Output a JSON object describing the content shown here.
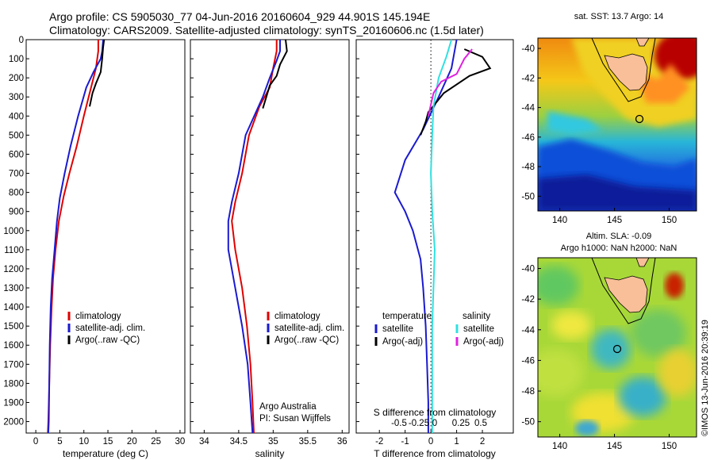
{
  "header": {
    "line1": "Argo profile: CS 5905030_77 04-Jun-2016 20160604_929 44.901S 145.194E",
    "line2": "Climatology: CARS2009. Satellite-adjusted climatology: synTS_20160606.nc (1.5d later)"
  },
  "footer": {
    "stamp": "©IMOS 13-Jun-2016 20:39:19"
  },
  "chart_data": [
    {
      "type": "line",
      "id": "temperature",
      "xlabel": "temperature (deg C)",
      "xlim": [
        -2,
        31
      ],
      "xticks": [
        "0",
        "5",
        "10",
        "15",
        "20",
        "25",
        "30"
      ],
      "ylim": [
        0,
        2060
      ],
      "yticks": [
        "0",
        "100",
        "200",
        "300",
        "400",
        "500",
        "600",
        "700",
        "800",
        "900",
        "1000",
        "1100",
        "1200",
        "1300",
        "1400",
        "1500",
        "1600",
        "1700",
        "1800",
        "1900",
        "2000"
      ],
      "legend": [
        "climatology",
        "satellite-adj. clim.",
        "Argo(..raw -QC)"
      ],
      "series": [
        {
          "name": "climatology",
          "color": "#e00000",
          "points": [
            [
              13.0,
              0
            ],
            [
              13.0,
              60
            ],
            [
              12.5,
              150
            ],
            [
              11.5,
              250
            ],
            [
              10.0,
              400
            ],
            [
              8.5,
              560
            ],
            [
              7.0,
              700
            ],
            [
              5.8,
              820
            ],
            [
              4.8,
              950
            ],
            [
              4.1,
              1100
            ],
            [
              3.6,
              1250
            ],
            [
              3.3,
              1400
            ],
            [
              3.0,
              1600
            ],
            [
              2.8,
              1800
            ],
            [
              2.6,
              2000
            ],
            [
              2.5,
              2060
            ]
          ]
        },
        {
          "name": "satellite-adj. clim.",
          "color": "#1a1ad0",
          "points": [
            [
              14.0,
              0
            ],
            [
              13.8,
              60
            ],
            [
              13.5,
              100
            ],
            [
              12.0,
              170
            ],
            [
              10.5,
              250
            ],
            [
              8.8,
              400
            ],
            [
              7.2,
              560
            ],
            [
              6.0,
              700
            ],
            [
              5.0,
              830
            ],
            [
              4.4,
              950
            ],
            [
              3.9,
              1100
            ],
            [
              3.4,
              1250
            ],
            [
              3.1,
              1400
            ],
            [
              2.9,
              1600
            ],
            [
              2.8,
              1800
            ],
            [
              2.7,
              2000
            ],
            [
              2.6,
              2060
            ]
          ]
        },
        {
          "name": "Argo(..raw -QC)",
          "color": "#000000",
          "points": [
            [
              14.2,
              0
            ],
            [
              14.0,
              40
            ],
            [
              13.8,
              100
            ],
            [
              13.5,
              170
            ],
            [
              12.5,
              230
            ],
            [
              11.8,
              280
            ],
            [
              11.2,
              350
            ]
          ]
        }
      ]
    },
    {
      "type": "line",
      "id": "salinity",
      "xlabel": "salinity",
      "xlim": [
        33.8,
        36.1
      ],
      "xticks": [
        "34",
        "34.5",
        "35",
        "35.5",
        "36"
      ],
      "ylim": [
        0,
        2060
      ],
      "legend": [
        "climatology",
        "satellite-adj. clim.",
        "Argo(..raw -QC)"
      ],
      "annotation": [
        "Argo Australia",
        "PI: Susan Wijffels"
      ],
      "series": [
        {
          "name": "climatology",
          "color": "#e00000",
          "points": [
            [
              35.05,
              0
            ],
            [
              35.05,
              60
            ],
            [
              35.0,
              150
            ],
            [
              34.95,
              250
            ],
            [
              34.8,
              350
            ],
            [
              34.65,
              500
            ],
            [
              34.55,
              700
            ],
            [
              34.45,
              850
            ],
            [
              34.4,
              950
            ],
            [
              34.45,
              1100
            ],
            [
              34.55,
              1300
            ],
            [
              34.62,
              1500
            ],
            [
              34.67,
              1700
            ],
            [
              34.7,
              1900
            ],
            [
              34.72,
              2060
            ]
          ]
        },
        {
          "name": "satellite-adj. clim.",
          "color": "#1a1ad0",
          "points": [
            [
              35.1,
              0
            ],
            [
              35.1,
              60
            ],
            [
              35.05,
              110
            ],
            [
              34.95,
              200
            ],
            [
              34.85,
              300
            ],
            [
              34.75,
              380
            ],
            [
              34.6,
              500
            ],
            [
              34.5,
              700
            ],
            [
              34.4,
              850
            ],
            [
              34.35,
              950
            ],
            [
              34.35,
              1100
            ],
            [
              34.45,
              1300
            ],
            [
              34.55,
              1500
            ],
            [
              34.63,
              1700
            ],
            [
              34.67,
              1900
            ],
            [
              34.7,
              2060
            ]
          ]
        },
        {
          "name": "Argo(..raw -QC)",
          "color": "#000000",
          "points": [
            [
              35.18,
              0
            ],
            [
              35.2,
              60
            ],
            [
              35.1,
              130
            ],
            [
              35.05,
              190
            ],
            [
              34.95,
              240
            ],
            [
              34.9,
              300
            ],
            [
              34.85,
              360
            ]
          ]
        }
      ]
    },
    {
      "type": "line",
      "id": "differences",
      "xlabel": "T difference from climatology",
      "xlabel_top": "S difference from climatology",
      "xlim": [
        -2.9,
        3.2
      ],
      "xticks": [
        "-2",
        "-1",
        "0",
        "1",
        "2"
      ],
      "sticks": [
        "-0.5",
        "-0.25",
        "0",
        "0.25",
        "0.5"
      ],
      "ylim": [
        0,
        2060
      ],
      "legend_titles": [
        "temperature",
        "salinity"
      ],
      "legend": [
        "satellite",
        "Argo(-adj)",
        "satellite",
        "Argo(-adj)"
      ],
      "series": [
        {
          "name": "satellite",
          "group": "temperature",
          "color": "#1a1ad0",
          "points": [
            [
              1.0,
              0
            ],
            [
              0.8,
              150
            ],
            [
              0.3,
              300
            ],
            [
              -0.3,
              470
            ],
            [
              -1.0,
              630
            ],
            [
              -1.4,
              800
            ],
            [
              -1.0,
              900
            ],
            [
              -0.7,
              1000
            ],
            [
              -0.4,
              1150
            ],
            [
              -0.3,
              1300
            ],
            [
              -0.2,
              1500
            ],
            [
              -0.15,
              1700
            ],
            [
              -0.1,
              1900
            ],
            [
              -0.1,
              2060
            ]
          ]
        },
        {
          "name": "Argo(-adj)",
          "group": "temperature",
          "color": "#000000",
          "points": [
            [
              1.3,
              50
            ],
            [
              2.0,
              90
            ],
            [
              2.3,
              150
            ],
            [
              1.5,
              190
            ],
            [
              0.5,
              280
            ],
            [
              -0.1,
              380
            ],
            [
              -0.2,
              430
            ],
            [
              -0.4,
              500
            ]
          ]
        },
        {
          "name": "satellite",
          "group": "salinity",
          "color": "#30e0e0",
          "points": [
            [
              0.8,
              0
            ],
            [
              0.6,
              90
            ],
            [
              0.3,
              200
            ],
            [
              0.1,
              350
            ],
            [
              0.05,
              500
            ],
            [
              0.0,
              700
            ],
            [
              0.05,
              900
            ],
            [
              0.15,
              1100
            ],
            [
              0.1,
              1300
            ],
            [
              0.05,
              1500
            ],
            [
              0.05,
              1800
            ],
            [
              0.05,
              2060
            ]
          ]
        },
        {
          "name": "Argo(-adj)",
          "group": "salinity",
          "color": "#e020e0",
          "points": [
            [
              1.6,
              50
            ],
            [
              1.3,
              100
            ],
            [
              1.0,
              180
            ],
            [
              0.4,
              220
            ],
            [
              0.1,
              280
            ],
            [
              -0.1,
              400
            ]
          ]
        }
      ]
    },
    {
      "type": "heatmap",
      "id": "sst-map",
      "title": "sat. SST: 13.7 Argo: 14",
      "xticks": [
        "140",
        "145",
        "150"
      ],
      "yticks": [
        "-40",
        "-42",
        "-44",
        "-46",
        "-48",
        "-50"
      ],
      "xlim": [
        138,
        152.5
      ],
      "ylim": [
        -51,
        -39.3
      ],
      "float_position": [
        145.194,
        -44.901
      ]
    },
    {
      "type": "heatmap",
      "id": "sla-map",
      "title_line1": "Altim. SLA: -0.09",
      "title_line2": "Argo h1000: NaN h2000: NaN",
      "xticks": [
        "140",
        "145",
        "150"
      ],
      "yticks": [
        "-40",
        "-42",
        "-44",
        "-46",
        "-48",
        "-50"
      ],
      "xlim": [
        138,
        152.5
      ],
      "ylim": [
        -51,
        -39.3
      ],
      "float_position": [
        145.194,
        -44.901
      ]
    }
  ]
}
